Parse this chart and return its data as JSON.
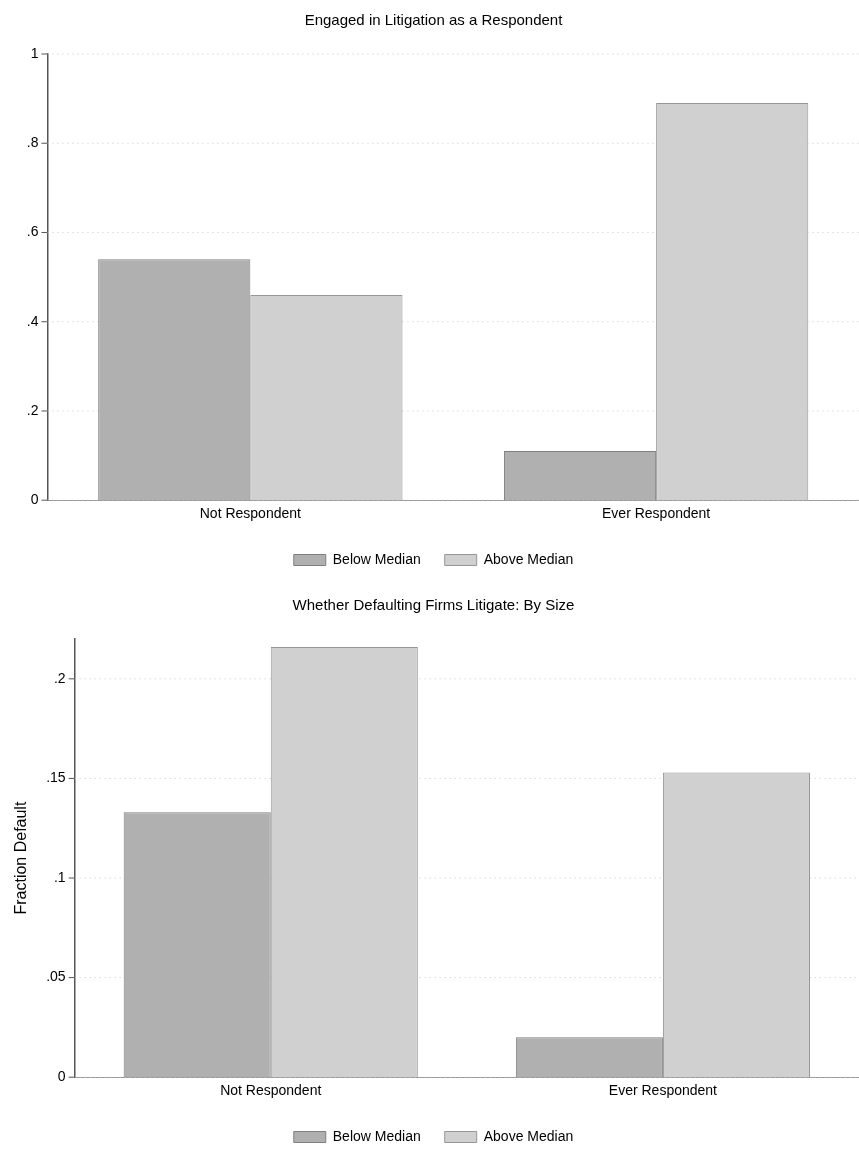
{
  "chart_data": [
    {
      "type": "bar",
      "title": "Engaged in Litigation as a Respondent",
      "categories": [
        "Not Respondent",
        "Ever Respondent"
      ],
      "series": [
        {
          "name": "Below Median",
          "color": "#b0b0b0",
          "values": [
            0.54,
            0.11
          ]
        },
        {
          "name": "Above Median",
          "color": "#d0d0d0",
          "values": [
            0.46,
            0.89
          ]
        }
      ],
      "ylim": [
        0,
        1
      ],
      "yticks": [
        {
          "value": 0,
          "label": "0"
        },
        {
          "value": 0.2,
          "label": ".2"
        },
        {
          "value": 0.4,
          "label": ".4"
        },
        {
          "value": 0.6,
          "label": ".6"
        },
        {
          "value": 0.8,
          "label": ".8"
        },
        {
          "value": 1,
          "label": "1"
        }
      ],
      "grid": "y",
      "legend": "bottom"
    },
    {
      "type": "bar",
      "title": "Whether Defaulting Firms Litigate: By Size",
      "ylabel": "Fraction Default",
      "categories": [
        "Not Respondent",
        "Ever Respondent"
      ],
      "series": [
        {
          "name": "Below Median",
          "color": "#b0b0b0",
          "values": [
            0.133,
            0.02
          ]
        },
        {
          "name": "Above Median",
          "color": "#d0d0d0",
          "values": [
            0.216,
            0.153
          ]
        }
      ],
      "ylim": [
        0,
        0.22
      ],
      "yticks": [
        {
          "value": 0,
          "label": "0"
        },
        {
          "value": 0.05,
          "label": ".05"
        },
        {
          "value": 0.1,
          "label": ".1"
        },
        {
          "value": 0.15,
          "label": ".15"
        },
        {
          "value": 0.2,
          "label": ".2"
        }
      ],
      "grid": "y",
      "legend": "bottom"
    }
  ]
}
